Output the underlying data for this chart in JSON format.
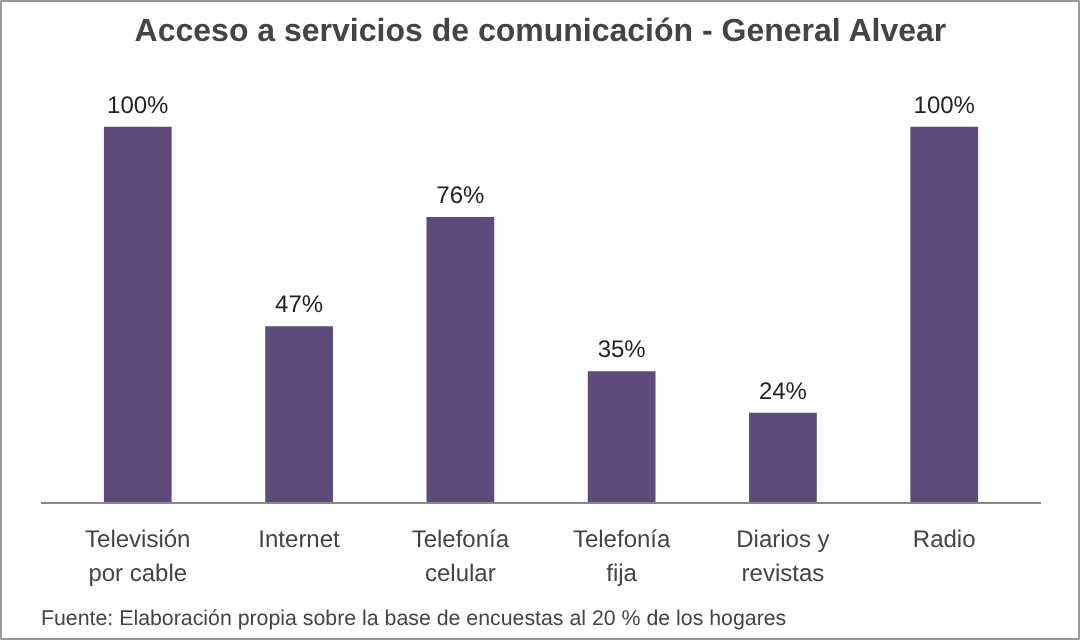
{
  "chart_data": {
    "type": "bar",
    "title": "Acceso a servicios de comunicación - General Alvear",
    "categories": [
      "Televisión por cable",
      "Internet",
      "Telefonía celular",
      "Telefonía fija",
      "Diarios y revistas",
      "Radio"
    ],
    "values": [
      100,
      47,
      76,
      35,
      24,
      100
    ],
    "value_labels": [
      "100%",
      "47%",
      "76%",
      "35%",
      "24%",
      "100%"
    ],
    "color": "#604a7b",
    "annotations": [
      "Fuente:  Elaboración propia sobre la base de encuestas al 20 %  de los hogares"
    ]
  }
}
